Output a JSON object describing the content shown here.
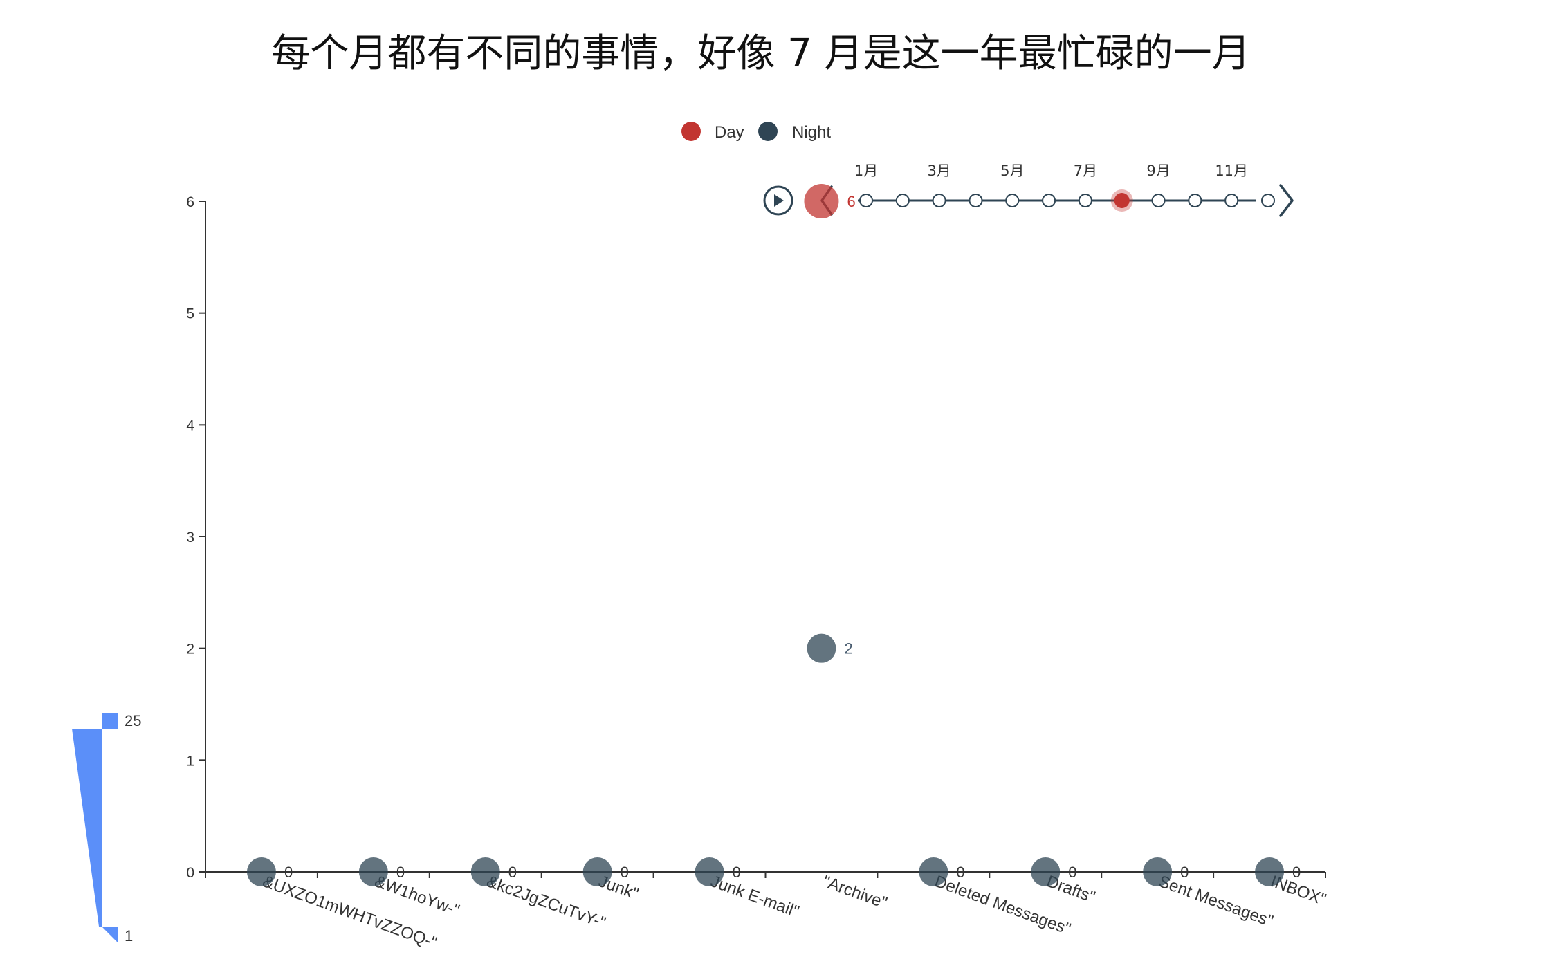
{
  "chart_data": {
    "type": "scatter",
    "title": "每个月都有不同的事情，好像 7 月是这一年最忙碌的一月",
    "legend": {
      "position": "top-center",
      "items": [
        {
          "name": "Day",
          "color": "#c23531"
        },
        {
          "name": "Night",
          "color": "#2f4554"
        }
      ]
    },
    "categories": [
      "&UXZO1mWHTvZZOQ-\"",
      "&W1hoYw-\"",
      "&kc2JgZCuTvY-\"",
      "Junk\"",
      "Junk E-mail\"",
      "\"Archive\"",
      "Deleted Messages\"",
      "Drafts\"",
      "Sent Messages\"",
      "INBOX\""
    ],
    "ylim": [
      0,
      6
    ],
    "y_ticks": [
      "0",
      "1",
      "2",
      "3",
      "4",
      "5",
      "6"
    ],
    "series": [
      {
        "name": "Day",
        "color": "#c23531",
        "values": [
          null,
          null,
          null,
          null,
          null,
          6,
          null,
          null,
          null,
          null
        ]
      },
      {
        "name": "Night",
        "color": "#2f4554",
        "values": [
          0,
          0,
          0,
          0,
          0,
          2,
          0,
          0,
          0,
          0
        ]
      }
    ],
    "data_labels": {
      "Day": [
        "",
        "",
        "",
        "",
        "",
        "6",
        "",
        "",
        "",
        ""
      ],
      "Night": [
        "0",
        "0",
        "0",
        "0",
        "0",
        "2",
        "0",
        "0",
        "0",
        "0"
      ]
    },
    "timeline": {
      "labels": [
        "1月",
        "",
        "3月",
        "",
        "5月",
        "",
        "7月",
        "",
        "9月",
        "",
        "11月",
        ""
      ],
      "current_index": 7,
      "point_count": 12
    },
    "visual_map": {
      "max_label": "25",
      "min_label": "1",
      "color": "#5b8ff9"
    },
    "grid": false
  }
}
